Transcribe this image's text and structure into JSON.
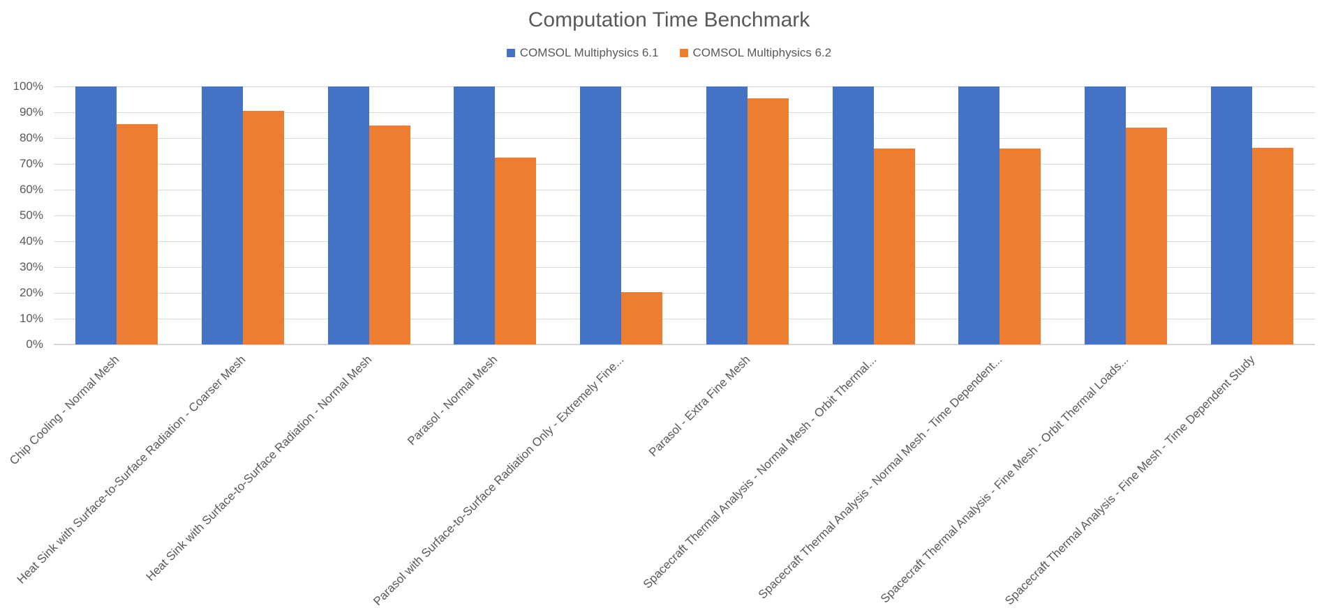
{
  "chart_data": {
    "type": "bar",
    "title": "Computation Time Benchmark",
    "legend_position": "top",
    "grid": "horizontal",
    "categories": [
      "Chip Cooling - Normal Mesh",
      "Heat Sink with Surface-to-Surface Radiation - Coarser Mesh",
      "Heat Sink with Surface-to-Surface Radiation - Normal Mesh",
      "Parasol - Normal Mesh",
      "Parasol with Surface-to-Surface Radiation Only - Extremely Fine...",
      "Parasol - Extra Fine Mesh",
      "Spacecraft Thermal Analysis - Normal Mesh - Orbit Thermal...",
      "Spacecraft Thermal Analysis - Normal Mesh - Time Dependent...",
      "Spacecraft Thermal Analysis - Fine Mesh - Orbit Thermal Loads...",
      "Spacecraft Thermal Analysis - Fine Mesh - Time Dependent Study"
    ],
    "series": [
      {
        "name": "COMSOL Multiphysics 6.1",
        "color": "#4472C4",
        "values": [
          100,
          100,
          100,
          100,
          100,
          100,
          100,
          100,
          100,
          100
        ]
      },
      {
        "name": "COMSOL Multiphysics 6.2",
        "color": "#ED7D31",
        "values": [
          85.5,
          90.5,
          85,
          72.5,
          20.3,
          95.5,
          76,
          76,
          84,
          76.3
        ]
      }
    ],
    "xlabel": "",
    "ylabel": "",
    "y_axis": {
      "min": 0,
      "max": 100,
      "step": 10,
      "tick_labels": [
        "0%",
        "10%",
        "20%",
        "30%",
        "40%",
        "50%",
        "60%",
        "70%",
        "80%",
        "90%",
        "100%"
      ]
    },
    "colors": {
      "gridline": "#d9d9d9",
      "text": "#595959",
      "background": "#ffffff"
    }
  }
}
